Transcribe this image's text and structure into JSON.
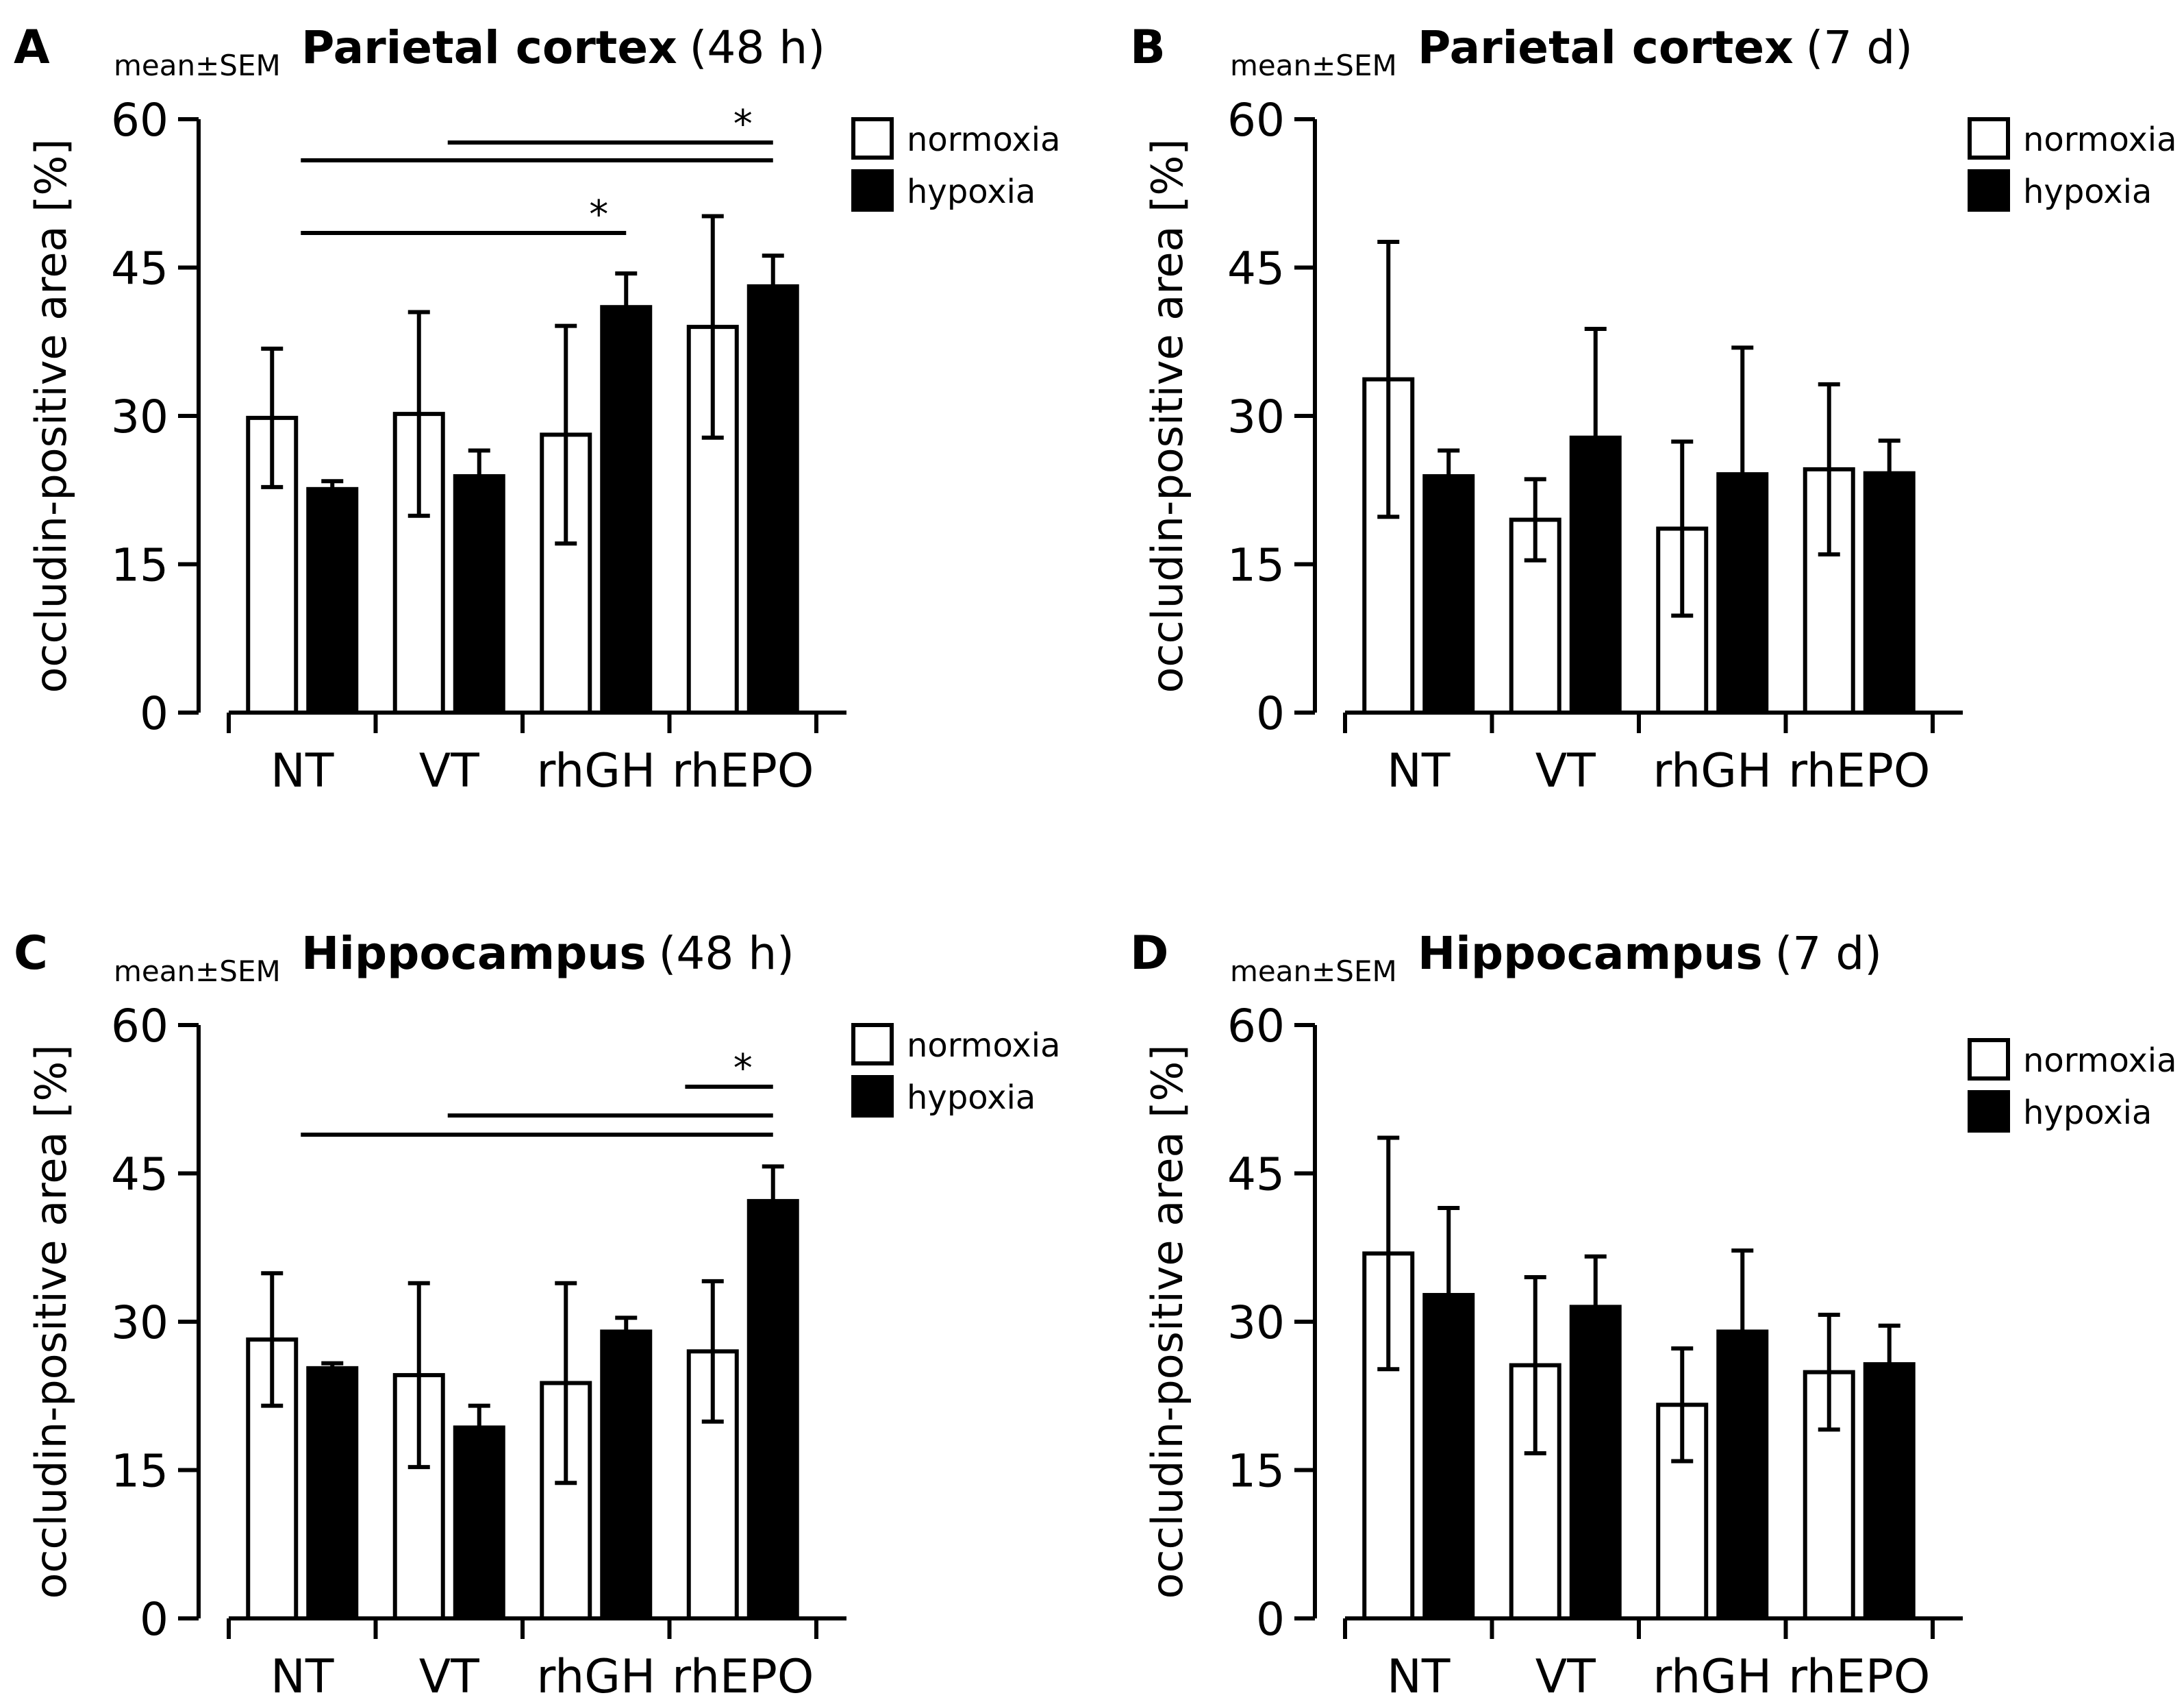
{
  "figure": {
    "mean_label": "mean±SEM",
    "legend": {
      "normoxia": "normoxia",
      "hypoxia": "hypoxia"
    },
    "colors": {
      "normoxia": "#ffffff",
      "hypoxia": "#000000",
      "stroke": "#000000"
    }
  },
  "chart_data": [
    {
      "panel": "A",
      "type": "bar",
      "title_bold": "Parietal cortex",
      "title_rest": "(48 h)",
      "ylabel": "occludin-positive area [%]",
      "ylim": [
        0,
        60
      ],
      "yticks": [
        0,
        15,
        30,
        45,
        60
      ],
      "categories": [
        "NT",
        "VT",
        "rhGH",
        "rhEPO"
      ],
      "series": [
        {
          "name": "normoxia",
          "values": [
            29.8,
            30.2,
            28.1,
            39.0
          ],
          "sem": [
            7.0,
            10.3,
            11.0,
            11.2
          ]
        },
        {
          "name": "hypoxia",
          "values": [
            22.6,
            23.9,
            41.0,
            43.1
          ],
          "sem": [
            0.8,
            2.6,
            3.4,
            3.1
          ]
        }
      ],
      "significance": [
        {
          "from": 0,
          "to": 3,
          "label": ""
        },
        {
          "from": 1,
          "to": 3,
          "label": "*"
        },
        {
          "from": 0,
          "to": 2,
          "label": "*"
        }
      ]
    },
    {
      "panel": "B",
      "type": "bar",
      "title_bold": "Parietal cortex",
      "title_rest": "(7 d)",
      "ylabel": "occludin-positive area [%]",
      "ylim": [
        0,
        60
      ],
      "yticks": [
        0,
        15,
        30,
        45,
        60
      ],
      "categories": [
        "NT",
        "VT",
        "rhGH",
        "rhEPO"
      ],
      "series": [
        {
          "name": "normoxia",
          "values": [
            33.7,
            19.5,
            18.6,
            24.6
          ],
          "sem": [
            13.9,
            4.1,
            8.8,
            8.6
          ]
        },
        {
          "name": "hypoxia",
          "values": [
            23.9,
            27.8,
            24.1,
            24.2
          ],
          "sem": [
            2.6,
            11.0,
            12.8,
            3.3
          ]
        }
      ],
      "significance": []
    },
    {
      "panel": "C",
      "type": "bar",
      "title_bold": "Hippocampus",
      "title_rest": "(48 h)",
      "ylabel": "occludin-positive area [%]",
      "ylim": [
        0,
        60
      ],
      "yticks": [
        0,
        15,
        30,
        45,
        60
      ],
      "categories": [
        "NT",
        "VT",
        "rhGH",
        "rhEPO"
      ],
      "series": [
        {
          "name": "normoxia",
          "values": [
            28.2,
            24.6,
            23.8,
            27.0
          ],
          "sem": [
            6.7,
            9.3,
            10.1,
            7.1
          ]
        },
        {
          "name": "hypoxia",
          "values": [
            25.3,
            19.3,
            29.0,
            42.2
          ],
          "sem": [
            0.5,
            2.2,
            1.4,
            3.5
          ]
        }
      ],
      "significance": [
        {
          "from": 0,
          "to": 3,
          "label": ""
        },
        {
          "from": 1,
          "to": 3,
          "label": ""
        },
        {
          "from": 2.7,
          "to": 3,
          "label": "*"
        }
      ]
    },
    {
      "panel": "D",
      "type": "bar",
      "title_bold": "Hippocampus",
      "title_rest": "(7 d)",
      "ylabel": "occludin-positive area [%]",
      "ylim": [
        0,
        60
      ],
      "yticks": [
        0,
        15,
        30,
        45,
        60
      ],
      "categories": [
        "NT",
        "VT",
        "rhGH",
        "rhEPO"
      ],
      "series": [
        {
          "name": "normoxia",
          "values": [
            36.9,
            25.6,
            21.6,
            24.9
          ],
          "sem": [
            11.7,
            8.9,
            5.7,
            5.8
          ]
        },
        {
          "name": "hypoxia",
          "values": [
            32.7,
            31.5,
            29.0,
            25.7
          ],
          "sem": [
            8.8,
            5.1,
            8.2,
            3.9
          ]
        }
      ],
      "significance": []
    }
  ]
}
